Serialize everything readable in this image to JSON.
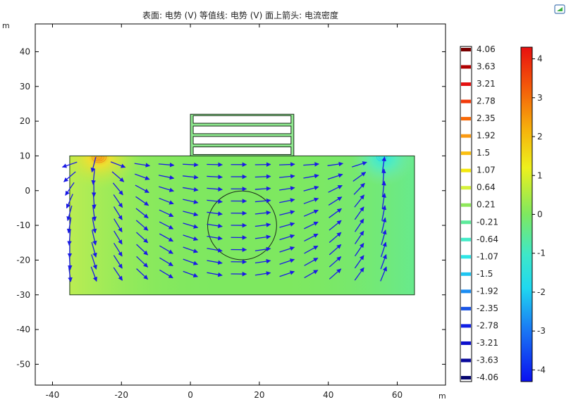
{
  "header": {
    "title": "表面: 电势 (V)  等值线: 电势 (V)  面上箭头: 电流密度",
    "unit_y": "m",
    "unit_x": "m"
  },
  "chart_data": {
    "type": "heatmap",
    "title": "表面: 电势 (V)  等值线: 电势 (V)  面上箭头: 电流密度",
    "xlabel": "m",
    "ylabel": "m",
    "xlim": [
      -45,
      74
    ],
    "ylim": [
      -56,
      48
    ],
    "x_ticks": [
      -40,
      -20,
      0,
      20,
      40,
      60
    ],
    "y_ticks": [
      40,
      30,
      20,
      10,
      0,
      -10,
      -20,
      -30,
      -40,
      -50
    ],
    "domain_rect": {
      "x0": -35,
      "x1": 65,
      "y0": -30,
      "y1": 10
    },
    "building": {
      "x0": 0,
      "x1": 30,
      "y0": 10,
      "y1": 22,
      "floors": 4
    },
    "circle": {
      "cx": 15,
      "cy": -10,
      "r": 10
    },
    "colors": {
      "field_base": "#7ee860",
      "field_high": "#e4ef3a",
      "field_low": "#55ecc8",
      "arrow": "#1a1ae6",
      "building_fill": "#8ee88e"
    },
    "contour_legend": {
      "labels": [
        "4.06",
        "3.63",
        "3.21",
        "2.78",
        "2.35",
        "1.92",
        "1.5",
        "1.07",
        "0.64",
        "0.21",
        "-0.21",
        "-0.64",
        "-1.07",
        "-1.5",
        "-1.92",
        "-2.35",
        "-2.78",
        "-3.21",
        "-3.63",
        "-4.06"
      ],
      "colors": [
        "#7a0000",
        "#b00000",
        "#e51010",
        "#f23a0a",
        "#f96a08",
        "#fb9a12",
        "#fbbf10",
        "#f4e80c",
        "#d6f23c",
        "#8ee85a",
        "#5ceb9a",
        "#44ecc8",
        "#2ee6e6",
        "#1fc6f2",
        "#1a8cf2",
        "#1a55e6",
        "#1020e6",
        "#0c10cc",
        "#08089c",
        "#060670"
      ]
    },
    "colorbar": {
      "min": -4.3,
      "max": 4.3,
      "ticks": [
        "4",
        "3",
        "2",
        "1",
        "0",
        "-1",
        "-2",
        "-3",
        "-4"
      ]
    }
  }
}
